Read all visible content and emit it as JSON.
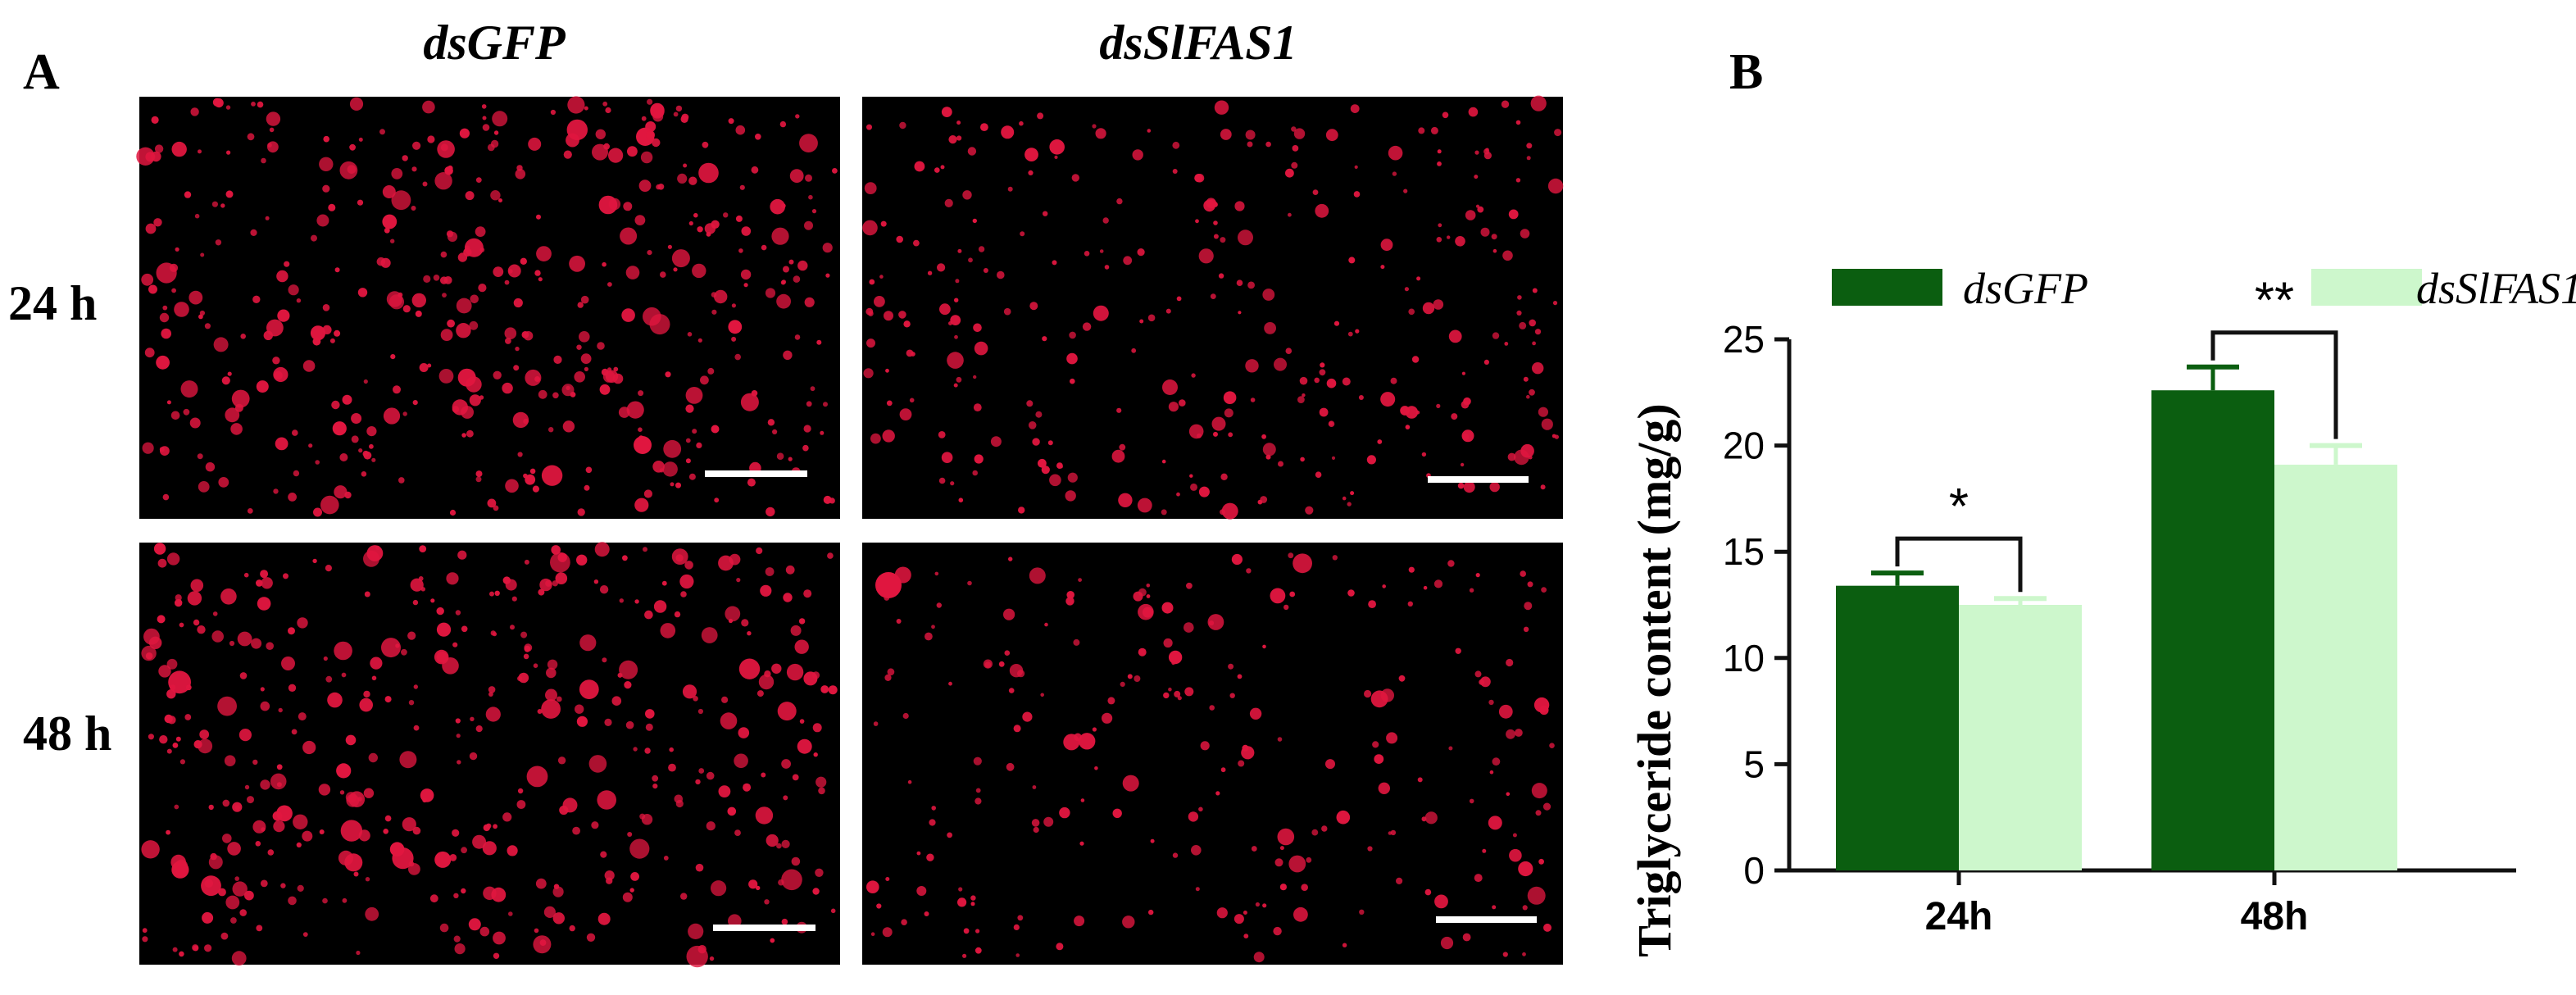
{
  "panel_a": {
    "label": "A",
    "columns": [
      "dsGFP",
      "dsSlFAS1"
    ],
    "rows": [
      "24 h",
      "48 h"
    ],
    "colors": {
      "background": "#000000",
      "droplet": "#e0163f",
      "scale_bar": "#ffffff"
    }
  },
  "panel_b": {
    "label": "B"
  },
  "chart_data": {
    "type": "bar",
    "categories": [
      "24h",
      "48h"
    ],
    "series": [
      {
        "name": "dsGFP",
        "values": [
          13.4,
          22.6
        ],
        "errors": [
          0.6,
          1.1
        ],
        "color": "#0b5e10"
      },
      {
        "name": "dsSlFAS1",
        "values": [
          12.5,
          19.1
        ],
        "errors": [
          0.3,
          0.9
        ],
        "color": "#cdf7cc"
      }
    ],
    "ylabel": "Triglyceride  content (mg/g)",
    "xlabel": "",
    "ylim": [
      0,
      25
    ],
    "yticks": [
      0,
      5,
      10,
      15,
      20,
      25
    ],
    "significance": [
      {
        "category": "24h",
        "label": "*"
      },
      {
        "category": "48h",
        "label": "**"
      }
    ],
    "legend_position": "top",
    "grid": false
  }
}
